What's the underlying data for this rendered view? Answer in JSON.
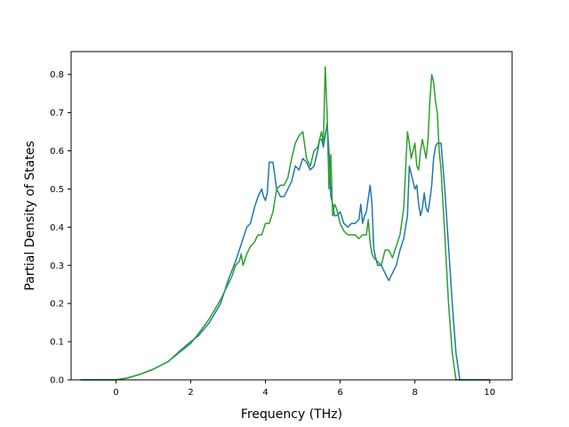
{
  "chart_data": {
    "type": "line",
    "title": "",
    "xlabel": "Frequency (THz)",
    "ylabel": "Partial Density of States",
    "xlim": [
      -1.2,
      10.6
    ],
    "ylim": [
      0.0,
      0.86
    ],
    "xticks": [
      0,
      2,
      4,
      6,
      8,
      10
    ],
    "xtick_labels": [
      "0",
      "2",
      "4",
      "6",
      "8",
      "10"
    ],
    "yticks": [
      0.0,
      0.1,
      0.2,
      0.3,
      0.4,
      0.5,
      0.6,
      0.7,
      0.8
    ],
    "ytick_labels": [
      "0.0",
      "0.1",
      "0.2",
      "0.3",
      "0.4",
      "0.5",
      "0.6",
      "0.7",
      "0.8"
    ],
    "grid": false,
    "legend": "none",
    "series": [
      {
        "color": "#1f77b4",
        "x": [
          -0.95,
          -0.5,
          0,
          0.3,
          0.6,
          1.0,
          1.4,
          1.7,
          2.0,
          2.2,
          2.5,
          2.8,
          3.0,
          3.2,
          3.4,
          3.5,
          3.6,
          3.7,
          3.8,
          3.9,
          3.95,
          4.0,
          4.05,
          4.1,
          4.2,
          4.3,
          4.4,
          4.5,
          4.55,
          4.6,
          4.65,
          4.7,
          4.8,
          4.9,
          5.0,
          5.1,
          5.2,
          5.3,
          5.4,
          5.45,
          5.5,
          5.55,
          5.6,
          5.65,
          5.7,
          5.75,
          5.8,
          5.85,
          5.9,
          6.0,
          6.1,
          6.2,
          6.3,
          6.4,
          6.5,
          6.55,
          6.6,
          6.65,
          6.7,
          6.8,
          6.85,
          6.9,
          7.0,
          7.1,
          7.2,
          7.3,
          7.4,
          7.5,
          7.6,
          7.7,
          7.75,
          7.8,
          7.85,
          7.9,
          8.0,
          8.05,
          8.1,
          8.15,
          8.2,
          8.25,
          8.3,
          8.35,
          8.4,
          8.45,
          8.5,
          8.55,
          8.6,
          8.65,
          8.7,
          8.8,
          8.9,
          9.0,
          9.1,
          9.2,
          9.5,
          10.0
        ],
        "y": [
          0,
          0,
          0,
          0.005,
          0.013,
          0.028,
          0.048,
          0.075,
          0.1,
          0.115,
          0.15,
          0.2,
          0.26,
          0.31,
          0.37,
          0.4,
          0.41,
          0.45,
          0.48,
          0.5,
          0.48,
          0.47,
          0.49,
          0.57,
          0.57,
          0.5,
          0.48,
          0.48,
          0.49,
          0.5,
          0.51,
          0.52,
          0.56,
          0.55,
          0.58,
          0.57,
          0.55,
          0.56,
          0.6,
          0.63,
          0.63,
          0.61,
          0.64,
          0.67,
          0.6,
          0.48,
          0.46,
          0.43,
          0.43,
          0.44,
          0.41,
          0.4,
          0.41,
          0.41,
          0.42,
          0.46,
          0.41,
          0.43,
          0.44,
          0.51,
          0.46,
          0.34,
          0.3,
          0.3,
          0.28,
          0.26,
          0.28,
          0.3,
          0.34,
          0.37,
          0.4,
          0.43,
          0.56,
          0.54,
          0.5,
          0.51,
          0.46,
          0.43,
          0.45,
          0.49,
          0.45,
          0.44,
          0.47,
          0.51,
          0.58,
          0.61,
          0.62,
          0.62,
          0.62,
          0.5,
          0.35,
          0.2,
          0.07,
          0,
          0,
          0
        ]
      },
      {
        "color": "#2ca02c",
        "x": [
          -0.95,
          -0.5,
          0,
          0.3,
          0.6,
          1.0,
          1.4,
          1.7,
          2.0,
          2.2,
          2.5,
          2.8,
          3.0,
          3.1,
          3.2,
          3.3,
          3.35,
          3.4,
          3.5,
          3.6,
          3.7,
          3.8,
          3.9,
          4.0,
          4.1,
          4.2,
          4.3,
          4.4,
          4.5,
          4.6,
          4.7,
          4.8,
          4.9,
          5.0,
          5.1,
          5.2,
          5.3,
          5.4,
          5.5,
          5.55,
          5.6,
          5.65,
          5.7,
          5.75,
          5.8,
          5.85,
          5.9,
          6.0,
          6.1,
          6.2,
          6.3,
          6.4,
          6.5,
          6.6,
          6.7,
          6.75,
          6.8,
          6.85,
          6.9,
          7.0,
          7.1,
          7.2,
          7.3,
          7.4,
          7.5,
          7.6,
          7.7,
          7.8,
          7.85,
          7.9,
          8.0,
          8.05,
          8.1,
          8.15,
          8.2,
          8.3,
          8.35,
          8.4,
          8.45,
          8.5,
          8.55,
          8.6,
          8.65,
          8.7,
          8.8,
          8.9,
          9.0,
          9.1,
          9.2,
          9.5,
          10.0
        ],
        "y": [
          0,
          0,
          0,
          0.005,
          0.013,
          0.028,
          0.048,
          0.072,
          0.095,
          0.12,
          0.16,
          0.21,
          0.25,
          0.27,
          0.3,
          0.31,
          0.33,
          0.3,
          0.33,
          0.35,
          0.36,
          0.38,
          0.38,
          0.41,
          0.41,
          0.44,
          0.5,
          0.51,
          0.51,
          0.53,
          0.58,
          0.62,
          0.64,
          0.65,
          0.58,
          0.56,
          0.6,
          0.61,
          0.65,
          0.62,
          0.82,
          0.7,
          0.5,
          0.59,
          0.43,
          0.46,
          0.45,
          0.41,
          0.39,
          0.38,
          0.38,
          0.38,
          0.37,
          0.38,
          0.38,
          0.42,
          0.36,
          0.33,
          0.32,
          0.31,
          0.3,
          0.34,
          0.34,
          0.32,
          0.35,
          0.38,
          0.45,
          0.65,
          0.62,
          0.58,
          0.62,
          0.56,
          0.55,
          0.6,
          0.63,
          0.58,
          0.63,
          0.73,
          0.8,
          0.78,
          0.73,
          0.7,
          0.6,
          0.55,
          0.38,
          0.2,
          0.07,
          0,
          0,
          0,
          0
        ]
      }
    ]
  }
}
